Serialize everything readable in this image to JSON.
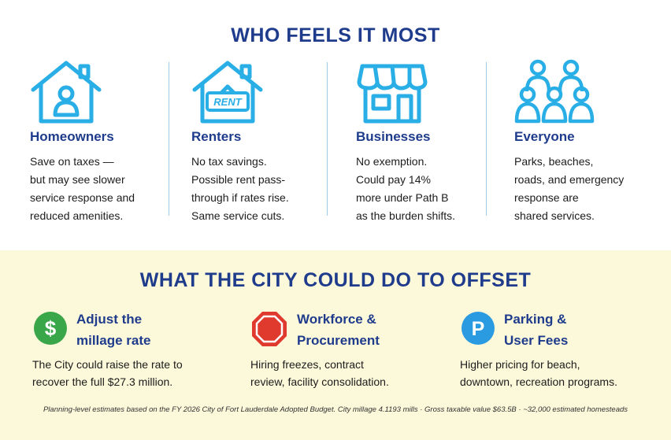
{
  "section_top": {
    "heading": "WHO FEELS IT MOST",
    "groups": [
      {
        "icon": "house-person-icon",
        "title": "Homeowners",
        "lines": [
          "Save on taxes —",
          "but may see slower",
          "service response and",
          "reduced amenities."
        ]
      },
      {
        "icon": "house-rent-sign-icon",
        "title": "Renters",
        "sign_text": "RENT",
        "lines": [
          "No tax savings.",
          "Possible rent pass-",
          "through if rates rise.",
          "Same service cuts."
        ]
      },
      {
        "icon": "storefront-icon",
        "title": "Businesses",
        "lines": [
          "No exemption.",
          "Could pay 14%",
          "more under Path B",
          "as the burden shifts."
        ]
      },
      {
        "icon": "group-people-icon",
        "title": "Everyone",
        "lines": [
          "Parks, beaches,",
          "roads, and emergency",
          "response are",
          "shared services."
        ]
      }
    ]
  },
  "section_bottom": {
    "heading": "WHAT THE CITY COULD DO TO OFFSET",
    "options": [
      {
        "icon": "dollar-circle-icon",
        "icon_text": "$",
        "title_lines": [
          "Adjust the",
          "millage rate"
        ],
        "lines": [
          "The City could raise the rate to",
          "recover the full $27.3 million."
        ]
      },
      {
        "icon": "stop-octagon-icon",
        "title_lines": [
          "Workforce &",
          "Procurement"
        ],
        "lines": [
          "Hiring freezes, contract",
          "review, facility consolidation."
        ]
      },
      {
        "icon": "parking-circle-icon",
        "icon_text": "P",
        "title_lines": [
          "Parking &",
          "User Fees"
        ],
        "lines": [
          "Higher pricing for beach,",
          "downtown, recreation programs."
        ]
      }
    ]
  },
  "footnote": "Planning-level estimates based on the FY 2026 City of Fort Lauderdale Adopted Budget. City millage 4.1193 mills · Gross taxable value $63.5B · ~32,000 estimated homesteads",
  "colors": {
    "heading": "#1f3c8c",
    "icon_blue": "#29aee6",
    "dollar_green": "#3aa64a",
    "stop_red": "#e03a2e",
    "parking_blue": "#2a9be0",
    "bottom_bg": "#fcf8da"
  }
}
